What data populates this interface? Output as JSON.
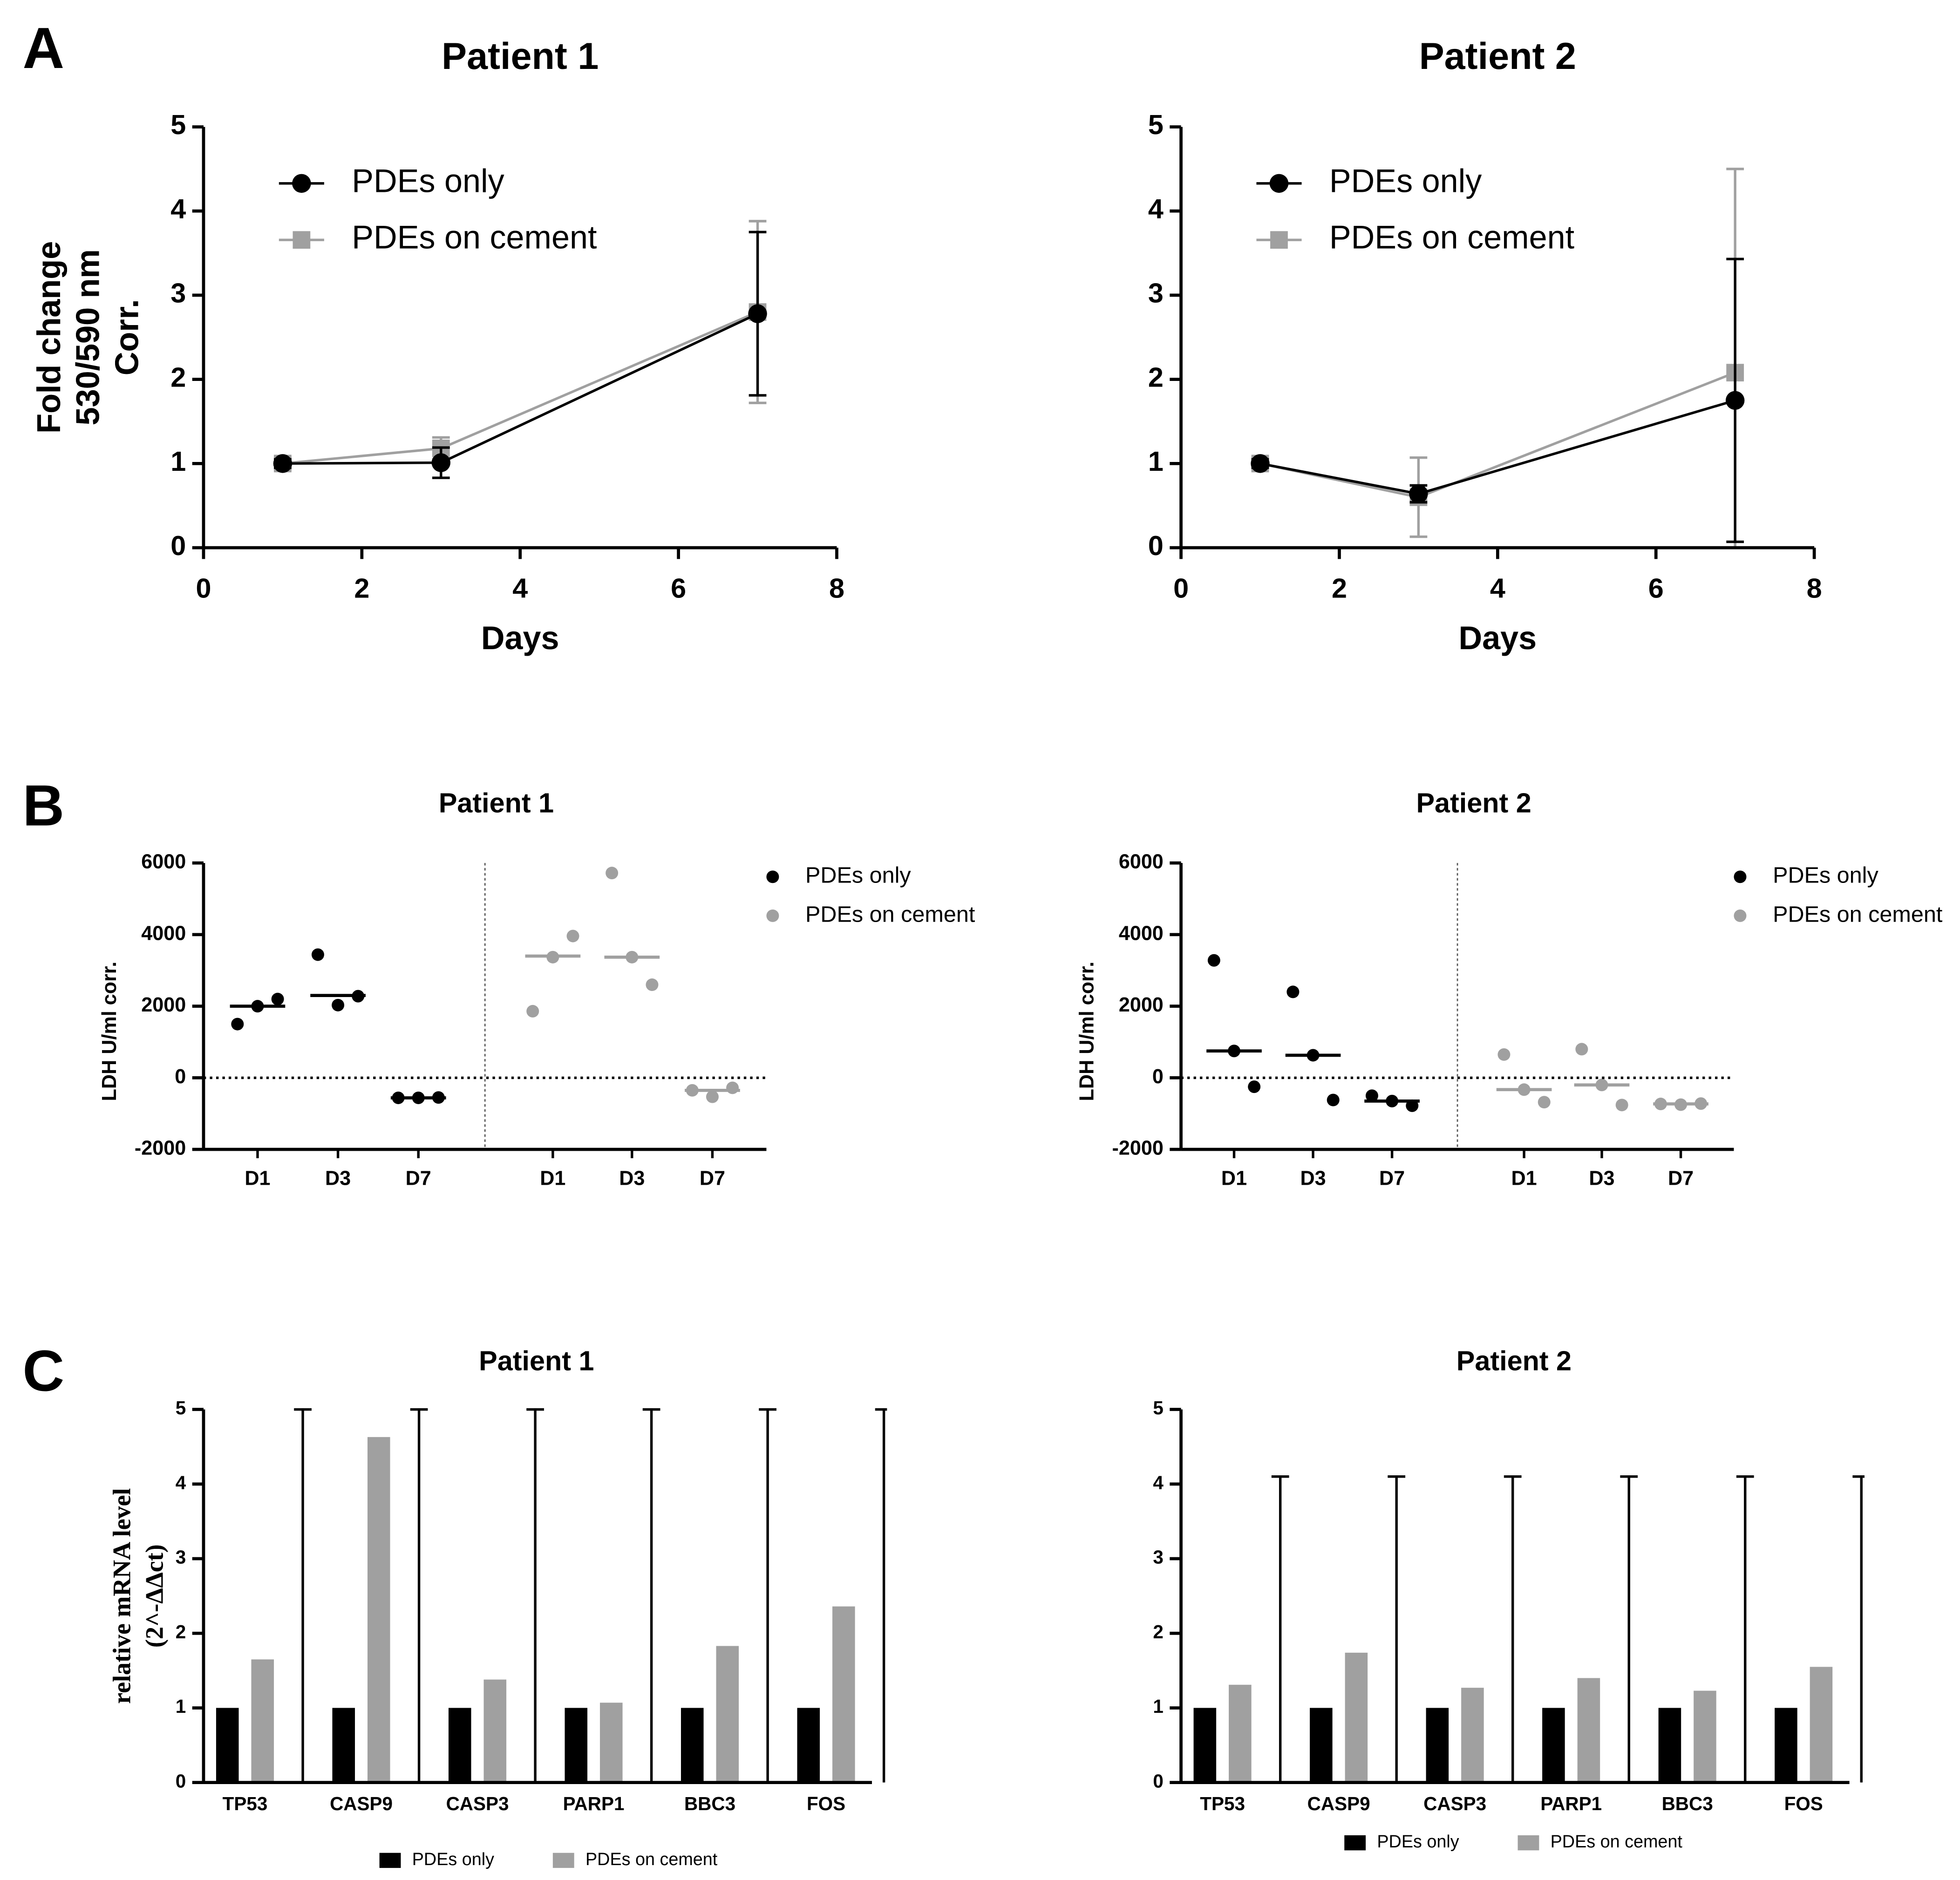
{
  "chart_data": [
    {
      "type": "line",
      "panel_label": "A",
      "title": "Patient 1",
      "xlabel": "Days",
      "ylabel": [
        "Fold change",
        "530/590 nm",
        "Corr."
      ],
      "x": [
        1,
        3,
        7
      ],
      "xlim": [
        0,
        8
      ],
      "xticks": [
        0,
        2,
        4,
        6,
        8
      ],
      "ylim": [
        0,
        5
      ],
      "yticks": [
        0,
        1,
        2,
        3,
        4,
        5
      ],
      "series": [
        {
          "name": "PDEs only",
          "color": "#000000",
          "marker": "circle",
          "values": [
            1,
            1.01,
            2.78
          ],
          "errors": [
            0.05,
            0.18,
            0.97
          ]
        },
        {
          "name": "PDEs on cement",
          "color": "#a0a0a0",
          "marker": "square",
          "values": [
            1,
            1.18,
            2.8
          ],
          "errors": [
            0.06,
            0.13,
            1.08
          ]
        }
      ]
    },
    {
      "type": "line",
      "title": "Patient 2",
      "xlabel": "Days",
      "ylabel": [
        "Fold change",
        "530/590 nm",
        "Corr."
      ],
      "x": [
        1,
        3,
        7
      ],
      "xlim": [
        0,
        8
      ],
      "xticks": [
        0,
        2,
        4,
        6,
        8
      ],
      "ylim": [
        0,
        5
      ],
      "yticks": [
        0,
        1,
        2,
        3,
        4,
        5
      ],
      "series": [
        {
          "name": "PDEs only",
          "color": "#000000",
          "marker": "circle",
          "values": [
            1,
            0.64,
            1.75
          ],
          "errors": [
            0.05,
            0.1,
            1.68
          ]
        },
        {
          "name": "PDEs on cement",
          "color": "#a0a0a0",
          "marker": "square",
          "values": [
            1,
            0.6,
            2.08
          ],
          "errors": [
            0.05,
            0.47,
            2.42
          ]
        }
      ]
    },
    {
      "type": "dot",
      "panel_label": "B",
      "title": "Patient 1",
      "ylabel": "LDH U/ml corr.",
      "categories": [
        "D1",
        "D3",
        "D7",
        "D1",
        "D3",
        "D7"
      ],
      "ylim": [
        -2000,
        6000
      ],
      "yticks": [
        -2000,
        0,
        2000,
        4000,
        6000
      ],
      "series": [
        {
          "name": "PDEs only",
          "color": "#000000",
          "values": [
            [
              2000,
              1500,
              2200
            ],
            [
              2030,
              3440,
              2280
            ],
            [
              -560,
              -560,
              -550
            ],
            null,
            null,
            null
          ],
          "medians": [
            2000,
            2300,
            -560,
            null,
            null,
            null
          ]
        },
        {
          "name": "PDEs on cement",
          "color": "#a0a0a0",
          "values": [
            null,
            null,
            null,
            [
              3370,
              1860,
              3960
            ],
            [
              3370,
              5720,
              2600
            ],
            [
              -530,
              -350,
              -280
            ]
          ],
          "medians": [
            null,
            null,
            null,
            3400,
            3370,
            -350
          ]
        }
      ]
    },
    {
      "type": "dot",
      "title": "Patient 2",
      "ylabel": "LDH U/ml corr.",
      "categories": [
        "D1",
        "D3",
        "D7",
        "D1",
        "D3",
        "D7"
      ],
      "ylim": [
        -2000,
        6000
      ],
      "yticks": [
        -2000,
        0,
        2000,
        4000,
        6000
      ],
      "series": [
        {
          "name": "PDEs only",
          "color": "#000000",
          "values": [
            [
              750,
              3280,
              -250
            ],
            [
              630,
              2400,
              -620
            ],
            [
              -650,
              -500,
              -780
            ],
            null,
            null,
            null
          ],
          "medians": [
            750,
            630,
            -650,
            null,
            null,
            null
          ]
        },
        {
          "name": "PDEs on cement",
          "color": "#a0a0a0",
          "values": [
            null,
            null,
            null,
            [
              -330,
              650,
              -680
            ],
            [
              -200,
              800,
              -760
            ],
            [
              -750,
              -730,
              -720
            ]
          ],
          "medians": [
            null,
            null,
            null,
            -330,
            -200,
            -730
          ]
        }
      ]
    },
    {
      "type": "bar",
      "panel_label": "C",
      "title": "Patient 1",
      "ylabel": [
        "relative mRNA level",
        "(2^-ΔΔct)"
      ],
      "categories": [
        "TP53",
        "CASP9",
        "CASP3",
        "PARP1",
        "BBC3",
        "FOS"
      ],
      "ylim": [
        0,
        5
      ],
      "yticks": [
        0,
        1,
        2,
        3,
        4,
        5
      ],
      "series": [
        {
          "name": "PDEs only",
          "color": "#000000",
          "values": [
            1,
            1,
            1,
            1,
            1,
            1
          ]
        },
        {
          "name": "PDEs on cement",
          "color": "#a0a0a0",
          "values": [
            1.65,
            4.63,
            1.38,
            1.07,
            1.83,
            2.36
          ]
        }
      ],
      "whiskers": [
        5,
        5,
        5,
        5,
        5,
        5
      ]
    },
    {
      "type": "bar",
      "title": "Patient 2",
      "ylabel": [
        "relative mRNA level",
        "(2^-ΔΔct)"
      ],
      "categories": [
        "TP53",
        "CASP9",
        "CASP3",
        "PARP1",
        "BBC3",
        "FOS"
      ],
      "ylim": [
        0,
        5
      ],
      "yticks": [
        0,
        1,
        2,
        3,
        4,
        5
      ],
      "series": [
        {
          "name": "PDEs only",
          "color": "#000000",
          "values": [
            1,
            1,
            1,
            1,
            1,
            1
          ]
        },
        {
          "name": "PDEs on cement",
          "color": "#a0a0a0",
          "values": [
            1.31,
            1.74,
            1.27,
            1.4,
            1.23,
            1.55
          ]
        }
      ],
      "whiskers": [
        4.1,
        4.1,
        4.1,
        4.1,
        4.1,
        4.1
      ]
    }
  ]
}
